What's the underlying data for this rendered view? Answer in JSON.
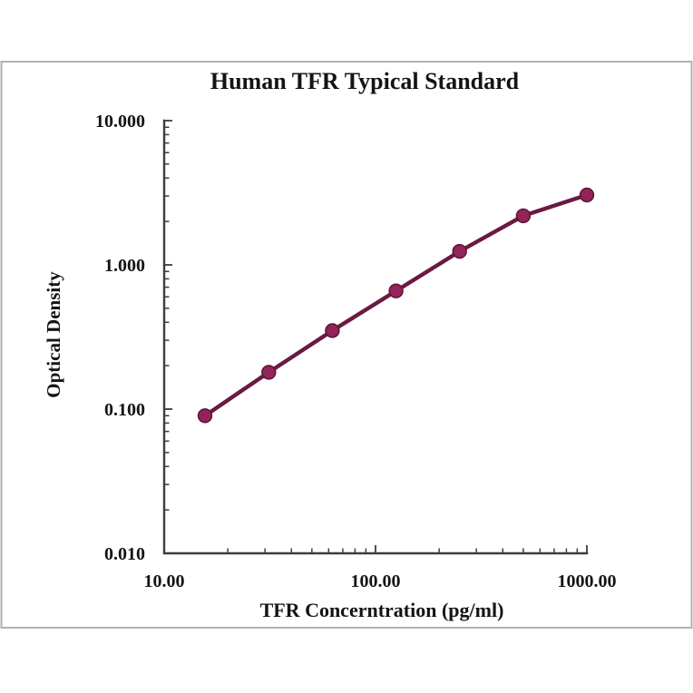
{
  "chart_data": {
    "type": "line",
    "title": "Human TFR Typical Standard",
    "xlabel": "TFR Concerntration (pg/ml)",
    "ylabel": "Optical Density",
    "x_scale": "log",
    "y_scale": "log",
    "xlim": [
      10,
      1000
    ],
    "ylim": [
      0.01,
      10
    ],
    "grid": false,
    "legend": "none",
    "x_ticks": [
      {
        "label": "10.00",
        "value": 10
      },
      {
        "label": "100.00",
        "value": 100
      },
      {
        "label": "1000.00",
        "value": 1000
      }
    ],
    "y_ticks": [
      {
        "label": "10.000",
        "value": 10
      },
      {
        "label": "1.000",
        "value": 1
      },
      {
        "label": "0.100",
        "value": 0.1
      },
      {
        "label": "0.010",
        "value": 0.01
      }
    ],
    "series": [
      {
        "name": "Human TFR Typical Standard",
        "x": [
          15.6,
          31.25,
          62.5,
          125,
          250,
          500,
          1000
        ],
        "y": [
          0.09,
          0.18,
          0.35,
          0.66,
          1.24,
          2.19,
          3.05
        ]
      }
    ],
    "colors": {
      "line": "#6a1a42",
      "marker": "#93245a",
      "marker_edge": "#5f1638",
      "axis": "#3d3d3d",
      "text": "#141414",
      "frame_border": "#b2b2b2",
      "background": "#ffffff"
    }
  }
}
